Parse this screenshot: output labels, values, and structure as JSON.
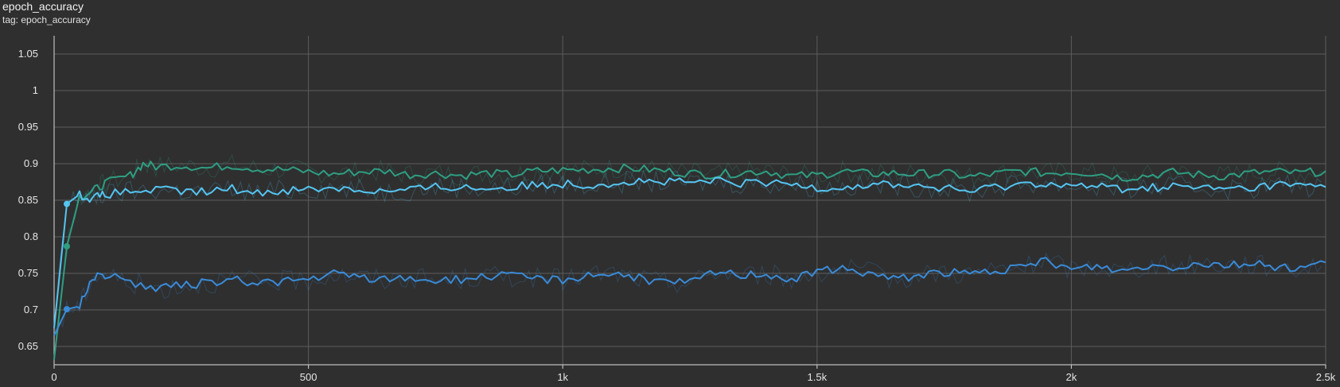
{
  "header": {
    "title": "epoch_accuracy",
    "tag": "tag: epoch_accuracy"
  },
  "chart_data": {
    "type": "line",
    "title": "epoch_accuracy",
    "xlabel": "",
    "ylabel": "",
    "xlim": [
      0,
      2500
    ],
    "ylim": [
      0.625,
      1.075
    ],
    "x_ticks": [
      0,
      500,
      1000,
      1500,
      2000,
      2500
    ],
    "x_tick_labels": [
      "0",
      "500",
      "1k",
      "1.5k",
      "2k",
      "2.5k"
    ],
    "y_ticks": [
      0.65,
      0.7,
      0.75,
      0.8,
      0.85,
      0.9,
      0.95,
      1,
      1.05
    ],
    "y_tick_labels": [
      "0.65",
      "0.7",
      "0.75",
      "0.8",
      "0.85",
      "0.9",
      "0.95",
      "1",
      "1.05"
    ],
    "grid": true,
    "legend": "none",
    "series": [
      {
        "color": "#2e9e82",
        "x": [
          0,
          25,
          50,
          75,
          100,
          150,
          175,
          200,
          250,
          300,
          350,
          400,
          450,
          500,
          550,
          600,
          650,
          700,
          750,
          800,
          850,
          900,
          950,
          1000,
          1050,
          1100,
          1150,
          1200,
          1250,
          1300,
          1350,
          1400,
          1450,
          1500,
          1550,
          1600,
          1650,
          1700,
          1750,
          1800,
          1850,
          1900,
          1950,
          2000,
          2050,
          2100,
          2150,
          2200,
          2250,
          2300,
          2350,
          2400,
          2450,
          2500
        ],
        "values": [
          0.632,
          0.787,
          0.855,
          0.862,
          0.873,
          0.884,
          0.9,
          0.896,
          0.898,
          0.894,
          0.898,
          0.893,
          0.892,
          0.889,
          0.886,
          0.889,
          0.89,
          0.885,
          0.887,
          0.884,
          0.887,
          0.885,
          0.89,
          0.891,
          0.892,
          0.894,
          0.893,
          0.89,
          0.887,
          0.885,
          0.888,
          0.89,
          0.883,
          0.884,
          0.89,
          0.886,
          0.887,
          0.886,
          0.887,
          0.882,
          0.886,
          0.89,
          0.887,
          0.889,
          0.887,
          0.881,
          0.884,
          0.888,
          0.885,
          0.883,
          0.887,
          0.889,
          0.887,
          0.89
        ],
        "marker_x": 25
      },
      {
        "color": "#55c5f2",
        "x": [
          0,
          25,
          50,
          75,
          100,
          150,
          200,
          250,
          300,
          350,
          400,
          450,
          500,
          550,
          600,
          650,
          700,
          750,
          800,
          850,
          900,
          950,
          1000,
          1050,
          1100,
          1150,
          1200,
          1250,
          1300,
          1350,
          1400,
          1450,
          1500,
          1550,
          1600,
          1650,
          1700,
          1750,
          1800,
          1850,
          1900,
          1950,
          2000,
          2050,
          2100,
          2150,
          2200,
          2250,
          2300,
          2350,
          2400,
          2450,
          2500
        ],
        "values": [
          0.675,
          0.845,
          0.858,
          0.852,
          0.858,
          0.862,
          0.864,
          0.862,
          0.861,
          0.866,
          0.86,
          0.864,
          0.865,
          0.868,
          0.864,
          0.862,
          0.864,
          0.868,
          0.868,
          0.866,
          0.868,
          0.871,
          0.873,
          0.871,
          0.874,
          0.876,
          0.875,
          0.874,
          0.876,
          0.873,
          0.873,
          0.872,
          0.868,
          0.868,
          0.871,
          0.872,
          0.869,
          0.866,
          0.862,
          0.868,
          0.872,
          0.874,
          0.869,
          0.869,
          0.866,
          0.867,
          0.869,
          0.867,
          0.866,
          0.866,
          0.872,
          0.87,
          0.868
        ],
        "marker_x": 25
      },
      {
        "color": "#3a8bd8",
        "x": [
          0,
          25,
          50,
          75,
          100,
          150,
          200,
          250,
          300,
          350,
          400,
          450,
          500,
          550,
          600,
          650,
          700,
          750,
          800,
          850,
          900,
          950,
          1000,
          1050,
          1100,
          1150,
          1200,
          1250,
          1300,
          1350,
          1400,
          1450,
          1500,
          1550,
          1600,
          1650,
          1700,
          1750,
          1800,
          1850,
          1900,
          1950,
          2000,
          2050,
          2100,
          2150,
          2200,
          2250,
          2300,
          2350,
          2400,
          2450,
          2500
        ],
        "values": [
          0.665,
          0.701,
          0.705,
          0.745,
          0.748,
          0.738,
          0.729,
          0.733,
          0.737,
          0.741,
          0.738,
          0.739,
          0.741,
          0.749,
          0.745,
          0.741,
          0.744,
          0.74,
          0.742,
          0.746,
          0.746,
          0.743,
          0.741,
          0.748,
          0.75,
          0.743,
          0.738,
          0.737,
          0.752,
          0.748,
          0.75,
          0.741,
          0.752,
          0.756,
          0.751,
          0.742,
          0.748,
          0.752,
          0.749,
          0.754,
          0.756,
          0.768,
          0.755,
          0.76,
          0.753,
          0.761,
          0.759,
          0.764,
          0.762,
          0.763,
          0.76,
          0.757,
          0.765
        ],
        "marker_x": 25
      }
    ]
  }
}
